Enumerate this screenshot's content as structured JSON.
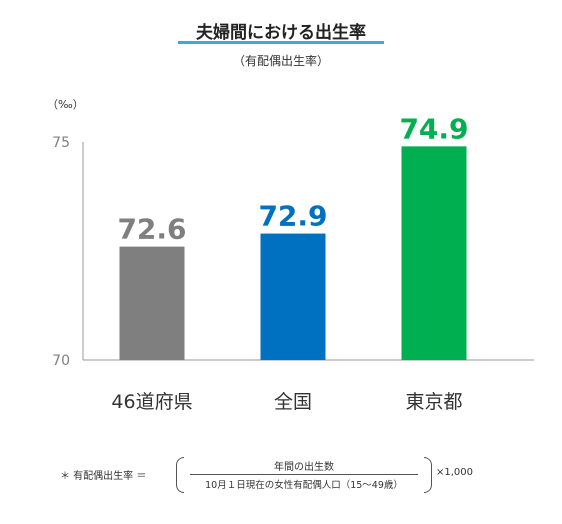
{
  "title": "夫婦間における出生率",
  "subtitle": "（有配偶出生率）",
  "chart_data": {
    "type": "bar",
    "unit_label": "（‰）",
    "ylim": [
      70,
      75
    ],
    "yticks": [
      "75",
      "70"
    ],
    "categories": [
      "46道府県",
      "全国",
      "東京都"
    ],
    "values": [
      72.6,
      72.9,
      74.9
    ],
    "data_labels": [
      "72.6",
      "72.9",
      "74.9"
    ],
    "bar_colors": [
      "#7f7f7f",
      "#0070c0",
      "#00b050"
    ],
    "label_colors": [
      "#7f7f7f",
      "#0070c0",
      "#00b050"
    ],
    "grid": false
  },
  "footnote": {
    "label": "＊ 有配偶出生率 ＝",
    "numerator": "年間の出生数",
    "denominator": "10月１日現在の女性有配偶人口（15〜49歳）",
    "multiplier": "×1,000"
  }
}
